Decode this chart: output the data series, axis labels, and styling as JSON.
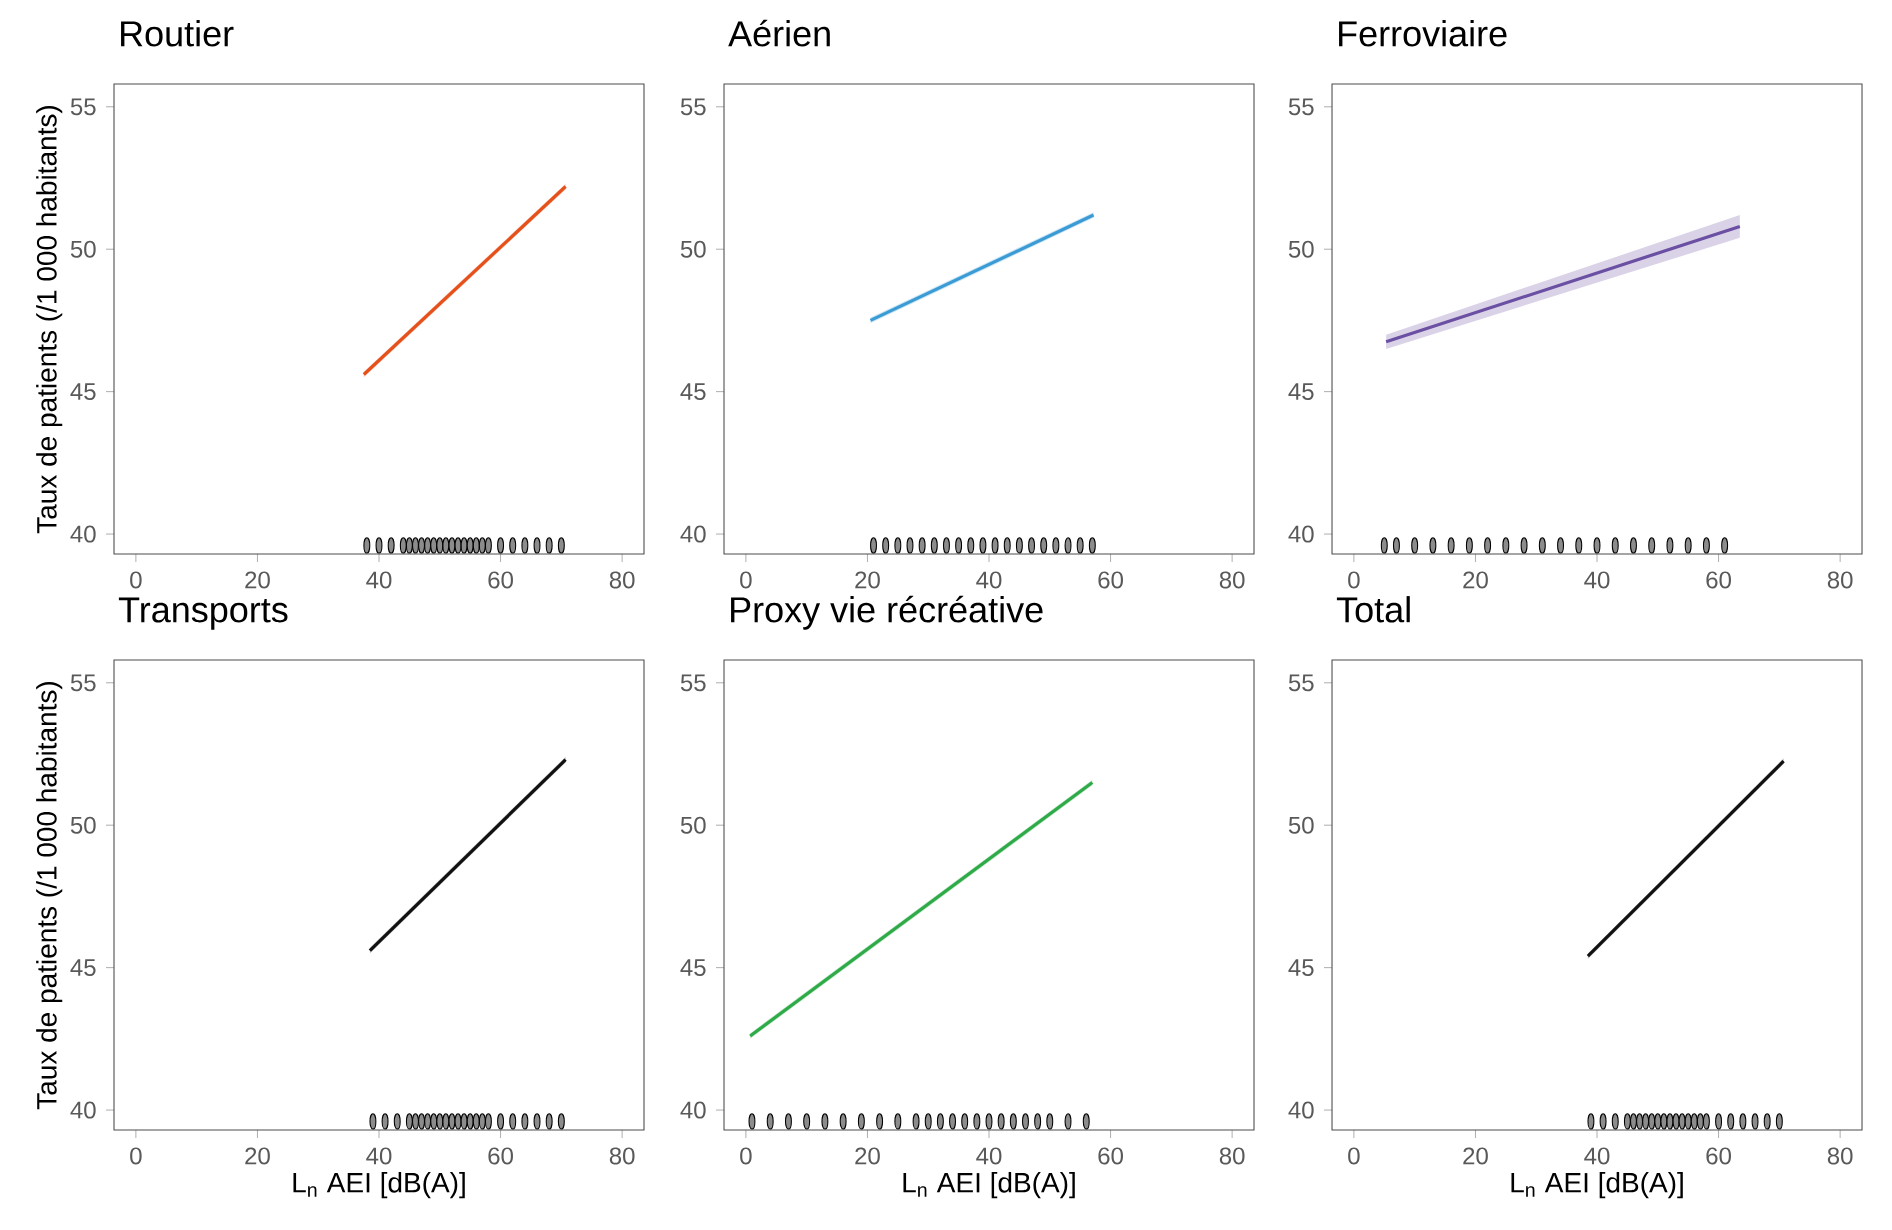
{
  "chart_data": [
    {
      "type": "line",
      "title": "Routier",
      "ylabel": "Taux de patients (/1 000 habitants)",
      "xlim": [
        -3.6,
        83.6
      ],
      "ylim": [
        39.3,
        55.8
      ],
      "xticks": [
        0,
        20,
        40,
        60,
        80
      ],
      "yticks": [
        40,
        45,
        50,
        55
      ],
      "series": [
        {
          "color": "#e5501b",
          "x": [
            37.5,
            70.7
          ],
          "values": [
            45.6,
            52.2
          ],
          "lower": [
            45.5,
            52.1
          ],
          "upper": [
            45.7,
            52.3
          ]
        },
        {
          "type": "scatter",
          "color": "#8c8c8c",
          "x": [
            38,
            40,
            42,
            44,
            45,
            46,
            47,
            48,
            49,
            50,
            51,
            52,
            53,
            54,
            55,
            56,
            57,
            58,
            60,
            62,
            64,
            66,
            68,
            70
          ],
          "values": [
            39.6,
            39.6,
            39.6,
            39.6,
            39.6,
            39.6,
            39.6,
            39.6,
            39.6,
            39.6,
            39.6,
            39.6,
            39.6,
            39.6,
            39.6,
            39.6,
            39.6,
            39.6,
            39.6,
            39.6,
            39.6,
            39.6,
            39.6,
            39.6
          ]
        }
      ]
    },
    {
      "type": "line",
      "title": "Aérien",
      "xlim": [
        -3.6,
        83.6
      ],
      "ylim": [
        39.3,
        55.8
      ],
      "xticks": [
        0,
        20,
        40,
        60,
        80
      ],
      "yticks": [
        40,
        45,
        50,
        55
      ],
      "series": [
        {
          "color": "#3a9bd5",
          "x": [
            20.5,
            57.2
          ],
          "values": [
            47.5,
            51.2
          ],
          "lower": [
            47.4,
            51.1
          ],
          "upper": [
            47.6,
            51.3
          ]
        },
        {
          "type": "scatter",
          "color": "#8c8c8c",
          "x": [
            21,
            23,
            25,
            27,
            29,
            31,
            33,
            35,
            37,
            39,
            41,
            43,
            45,
            47,
            49,
            51,
            53,
            55,
            57
          ],
          "values": [
            39.6,
            39.6,
            39.6,
            39.6,
            39.6,
            39.6,
            39.6,
            39.6,
            39.6,
            39.6,
            39.6,
            39.6,
            39.6,
            39.6,
            39.6,
            39.6,
            39.6,
            39.6,
            39.6
          ]
        }
      ]
    },
    {
      "type": "line",
      "title": "Ferroviaire",
      "xlim": [
        -3.6,
        83.6
      ],
      "ylim": [
        39.3,
        55.8
      ],
      "xticks": [
        0,
        20,
        40,
        60,
        80
      ],
      "yticks": [
        40,
        45,
        50,
        55
      ],
      "series": [
        {
          "color": "#6a4fa3",
          "x": [
            5.3,
            63.5
          ],
          "values": [
            46.75,
            50.8
          ],
          "lower": [
            46.5,
            50.4
          ],
          "upper": [
            47.0,
            51.2
          ]
        },
        {
          "type": "scatter",
          "color": "#8c8c8c",
          "x": [
            5,
            7,
            10,
            13,
            16,
            19,
            22,
            25,
            28,
            31,
            34,
            37,
            40,
            43,
            46,
            49,
            52,
            55,
            58,
            61
          ],
          "values": [
            39.6,
            39.6,
            39.6,
            39.6,
            39.6,
            39.6,
            39.6,
            39.6,
            39.6,
            39.6,
            39.6,
            39.6,
            39.6,
            39.6,
            39.6,
            39.6,
            39.6,
            39.6,
            39.6,
            39.6
          ]
        }
      ]
    },
    {
      "type": "line",
      "title": "Transports",
      "ylabel": "Taux de patients (/1 000 habitants)",
      "xlabel": "L$_{n}$ AEI [dB(A)]",
      "xlim": [
        -3.6,
        83.6
      ],
      "ylim": [
        39.3,
        55.8
      ],
      "xticks": [
        0,
        20,
        40,
        60,
        80
      ],
      "yticks": [
        40,
        45,
        50,
        55
      ],
      "series": [
        {
          "color": "#111111",
          "x": [
            38.5,
            70.7
          ],
          "values": [
            45.6,
            52.3
          ],
          "lower": [
            45.5,
            52.2
          ],
          "upper": [
            45.7,
            52.4
          ]
        },
        {
          "type": "scatter",
          "color": "#8c8c8c",
          "x": [
            39,
            41,
            43,
            45,
            46,
            47,
            48,
            49,
            50,
            51,
            52,
            53,
            54,
            55,
            56,
            57,
            58,
            60,
            62,
            64,
            66,
            68,
            70
          ],
          "values": [
            39.6,
            39.6,
            39.6,
            39.6,
            39.6,
            39.6,
            39.6,
            39.6,
            39.6,
            39.6,
            39.6,
            39.6,
            39.6,
            39.6,
            39.6,
            39.6,
            39.6,
            39.6,
            39.6,
            39.6,
            39.6,
            39.6,
            39.6
          ]
        }
      ]
    },
    {
      "type": "line",
      "title": "Proxy vie récréative",
      "xlabel": "L$_{n}$ AEI [dB(A)]",
      "xlim": [
        -3.6,
        83.6
      ],
      "ylim": [
        39.3,
        55.8
      ],
      "xticks": [
        0,
        20,
        40,
        60,
        80
      ],
      "yticks": [
        40,
        45,
        50,
        55
      ],
      "series": [
        {
          "color": "#2eaa48",
          "x": [
            0.7,
            57.0
          ],
          "values": [
            42.6,
            51.5
          ],
          "lower": [
            42.5,
            51.4
          ],
          "upper": [
            42.7,
            51.6
          ]
        },
        {
          "type": "scatter",
          "color": "#8c8c8c",
          "x": [
            1,
            4,
            7,
            10,
            13,
            16,
            19,
            22,
            25,
            28,
            30,
            32,
            34,
            36,
            38,
            40,
            42,
            44,
            46,
            48,
            50,
            53,
            56
          ],
          "values": [
            39.6,
            39.6,
            39.6,
            39.6,
            39.6,
            39.6,
            39.6,
            39.6,
            39.6,
            39.6,
            39.6,
            39.6,
            39.6,
            39.6,
            39.6,
            39.6,
            39.6,
            39.6,
            39.6,
            39.6,
            39.6,
            39.6,
            39.6
          ]
        }
      ]
    },
    {
      "type": "line",
      "title": "Total",
      "xlabel": "L$_{n}$ AEI [dB(A)]",
      "xlim": [
        -3.6,
        83.6
      ],
      "ylim": [
        39.3,
        55.8
      ],
      "xticks": [
        0,
        20,
        40,
        60,
        80
      ],
      "yticks": [
        40,
        45,
        50,
        55
      ],
      "series": [
        {
          "color": "#111111",
          "x": [
            38.5,
            70.7
          ],
          "values": [
            45.4,
            52.25
          ],
          "lower": [
            45.3,
            52.15
          ],
          "upper": [
            45.5,
            52.35
          ]
        },
        {
          "type": "scatter",
          "color": "#8c8c8c",
          "x": [
            39,
            41,
            43,
            45,
            46,
            47,
            48,
            49,
            50,
            51,
            52,
            53,
            54,
            55,
            56,
            57,
            58,
            60,
            62,
            64,
            66,
            68,
            70
          ],
          "values": [
            39.6,
            39.6,
            39.6,
            39.6,
            39.6,
            39.6,
            39.6,
            39.6,
            39.6,
            39.6,
            39.6,
            39.6,
            39.6,
            39.6,
            39.6,
            39.6,
            39.6,
            39.6,
            39.6,
            39.6,
            39.6,
            39.6,
            39.6
          ]
        }
      ]
    }
  ]
}
